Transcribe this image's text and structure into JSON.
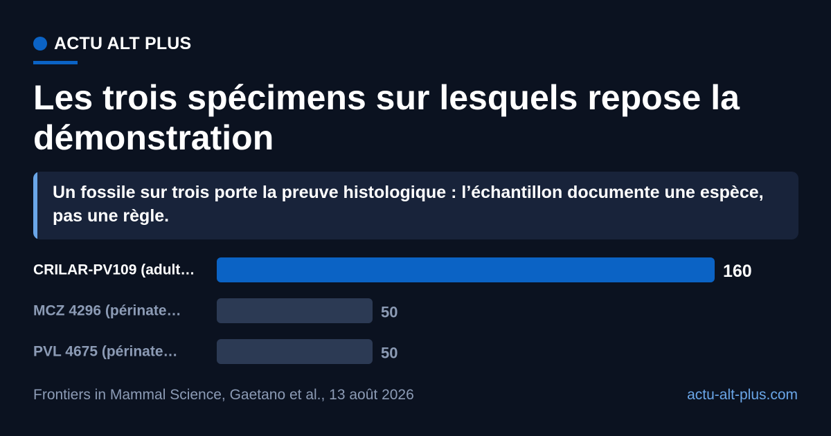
{
  "brand": {
    "name": "ACTU ALT PLUS",
    "color": "#0b63c5"
  },
  "title": "Les trois spécimens sur lesquels repose la démonstration",
  "callout": "Un fossile sur trois porte la preuve histologique : l’échantillon documente une espèce, pas une règle.",
  "chart_data": {
    "type": "bar",
    "orientation": "horizontal",
    "categories": [
      "CRILAR-PV109 (adult…",
      "MCZ 4296 (périnate…",
      "PVL 4675 (périnate…"
    ],
    "values": [
      160,
      50,
      50
    ],
    "highlight_index": 0,
    "colors": {
      "highlight": "#0b63c5",
      "default": "#2c3a54",
      "highlight_label": "#ffffff",
      "default_label": "#8c9bb5"
    }
  },
  "footer": {
    "source": "Frontiers in Mammal Science, Gaetano et al., 13 août 2026",
    "site": "actu-alt-plus.com"
  }
}
